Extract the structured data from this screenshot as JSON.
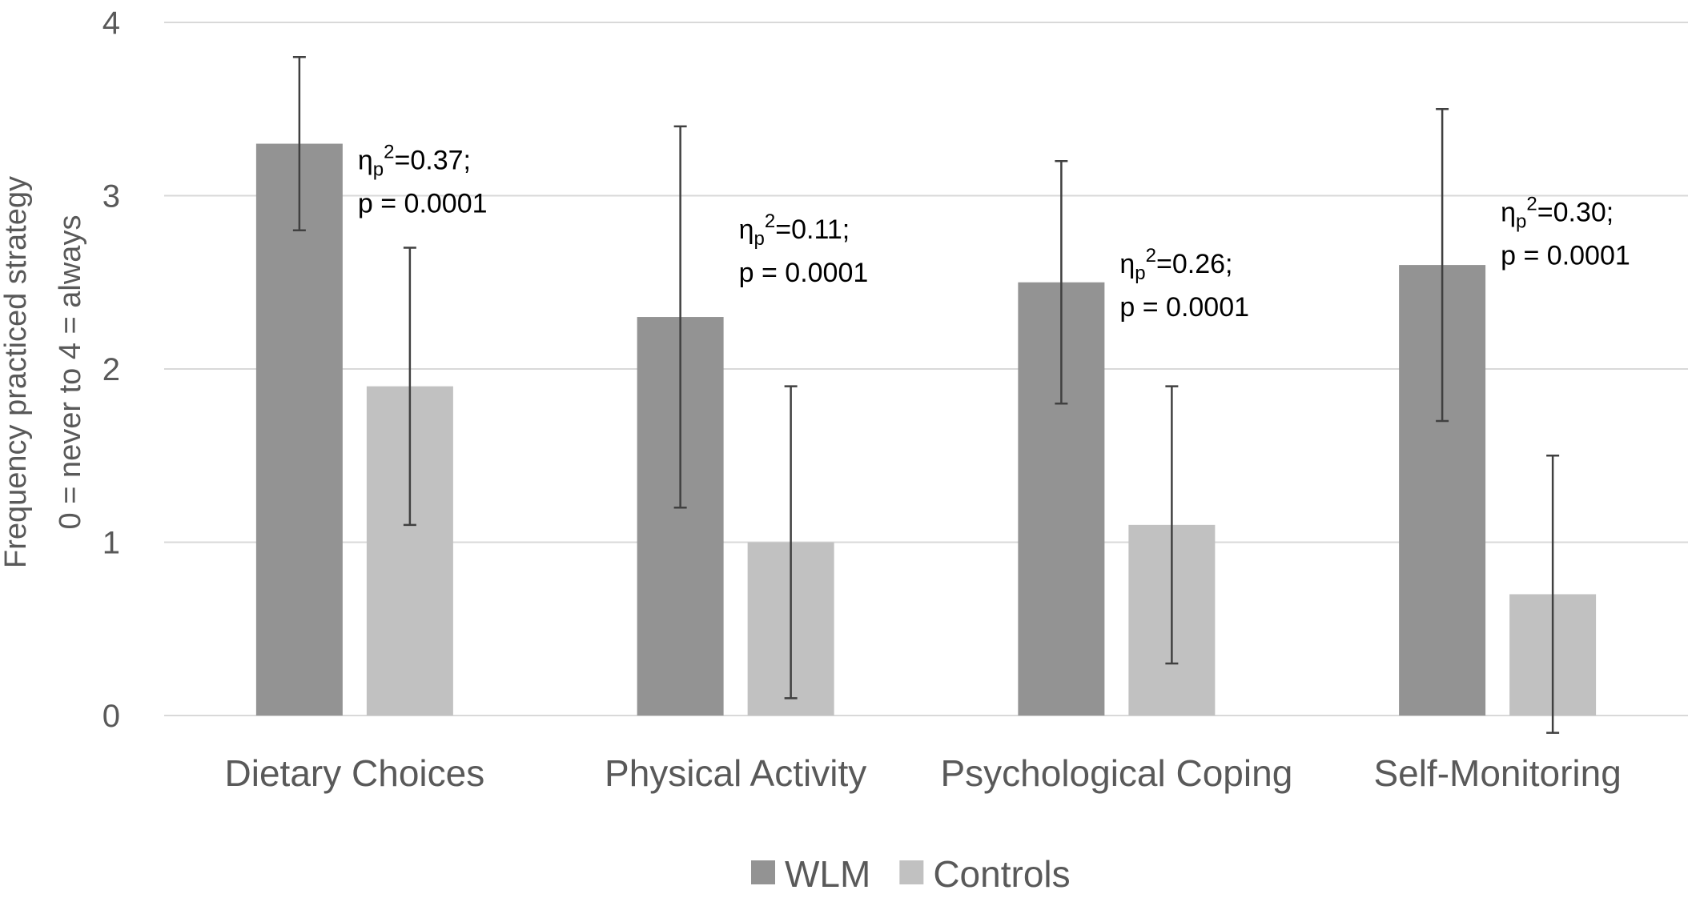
{
  "chart_data": {
    "type": "bar",
    "ylabel_lines": [
      "Frequency practiced strategy",
      "0 = never to 4 = always"
    ],
    "categories": [
      "Dietary Choices",
      "Physical Activity",
      "Psychological Coping",
      "Self-Monitoring"
    ],
    "series": [
      {
        "name": "WLM",
        "color": "#939393",
        "values": [
          3.3,
          2.3,
          2.5,
          2.6
        ],
        "err_low": [
          2.8,
          1.2,
          1.8,
          1.7
        ],
        "err_high": [
          3.8,
          3.4,
          3.2,
          3.5
        ]
      },
      {
        "name": "Controls",
        "color": "#c1c1c1",
        "values": [
          1.9,
          1.0,
          1.1,
          0.7
        ],
        "err_low": [
          1.1,
          0.1,
          0.3,
          -0.1
        ],
        "err_high": [
          2.7,
          1.9,
          1.9,
          1.5
        ]
      }
    ],
    "ylim": [
      0,
      4
    ],
    "yticks": [
      "0",
      "1",
      "2",
      "3",
      "4"
    ],
    "grid": true,
    "legend_position": "bottom",
    "annotations": [
      {
        "category": "Dietary Choices",
        "eta": "0.37",
        "p_text": "p = 0.0001"
      },
      {
        "category": "Physical Activity",
        "eta": "0.11",
        "p_text": "p = 0.0001"
      },
      {
        "category": "Psychological Coping",
        "eta": "0.26",
        "p_text": "p = 0.0001"
      },
      {
        "category": "Self-Monitoring",
        "eta": "0.30",
        "p_text": "p = 0.0001"
      }
    ],
    "annotation_symbol": "η",
    "annotation_subscript": "p",
    "annotation_superscript": "2",
    "annotation_eq": "=",
    "annotation_sep": ";",
    "colors": {
      "grid": "#d9d9d9",
      "error_bar": "#404040",
      "axis_text": "#595959"
    }
  }
}
